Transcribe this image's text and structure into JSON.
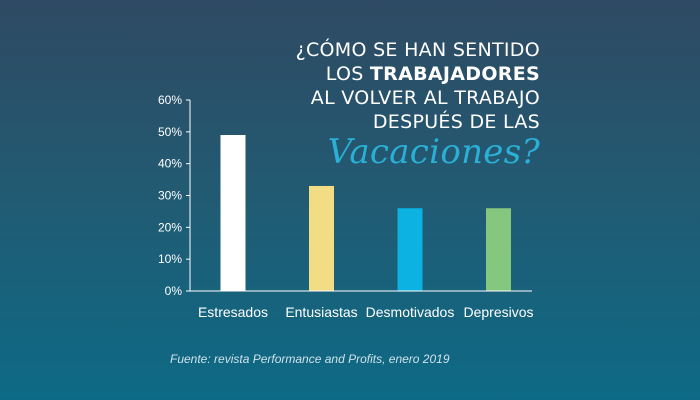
{
  "title": {
    "line1": "¿CÓMO SE HAN SENTIDO",
    "line2_a": "LOS ",
    "line2_b": "TRABAJADORES",
    "line3": "AL VOLVER AL TRABAJO",
    "line4": "DESPUÉS DE LAS",
    "line5": "Vacaciones?"
  },
  "source": "Fuente: revista Performance and Profits, enero 2019",
  "chart_data": {
    "type": "bar",
    "categories": [
      "Estresados",
      "Entusiastas",
      "Desmotivados",
      "Depresivos"
    ],
    "values": [
      49,
      33,
      26,
      26
    ],
    "bar_colors": [
      "#ffffff",
      "#f2dc84",
      "#0bb2e2",
      "#85c77e"
    ],
    "ylim": [
      0,
      60
    ],
    "yticks": [
      0,
      10,
      20,
      30,
      40,
      50,
      60
    ],
    "ytick_labels": [
      "0%",
      "10%",
      "20%",
      "30%",
      "40%",
      "50%",
      "60%"
    ],
    "grid": false,
    "legend": "none"
  }
}
